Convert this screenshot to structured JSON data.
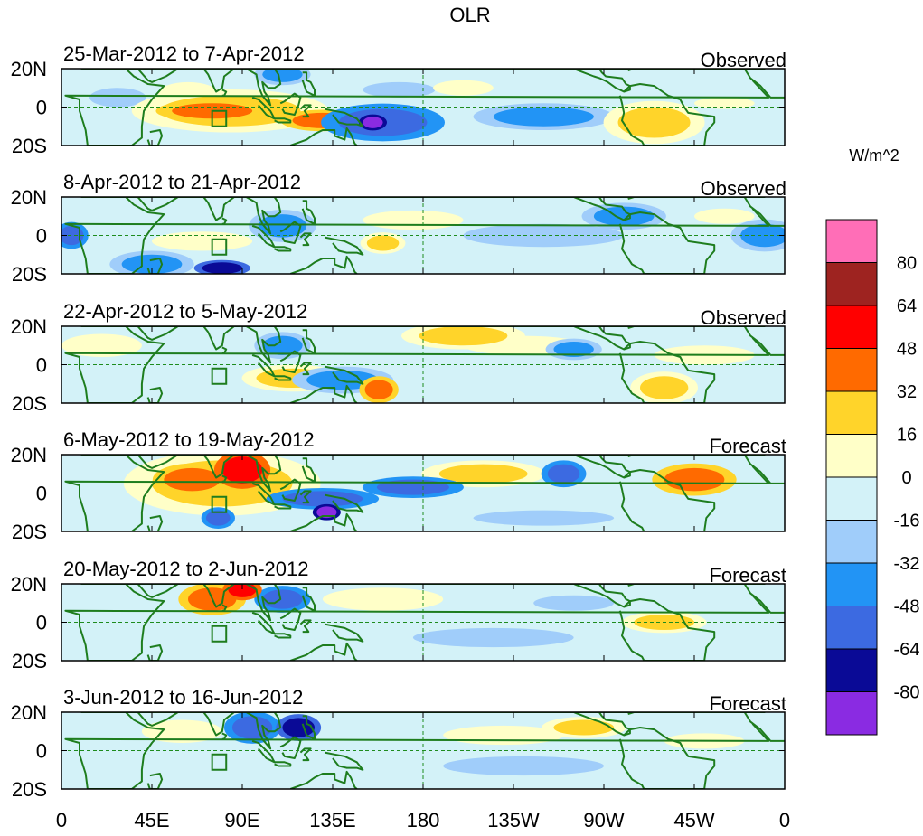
{
  "title": "OLR",
  "units_label": "W/m^2",
  "lat_labels": [
    "20N",
    "0",
    "20S"
  ],
  "lon_labels": [
    "0",
    "45E",
    "90E",
    "135E",
    "180",
    "135W",
    "90W",
    "45W",
    "0"
  ],
  "panels": [
    {
      "date_range": "25-Mar-2012 to 7-Apr-2012",
      "status": "Observed",
      "anomalies": [
        {
          "lon": 28,
          "lat": 5,
          "value": -16,
          "rx": 14,
          "ry": 5
        },
        {
          "lon": 63,
          "lat": 7,
          "value": 16,
          "rx": 15,
          "ry": 6
        },
        {
          "lon": 75,
          "lat": -2,
          "value": 48,
          "rx": 20,
          "ry": 4
        },
        {
          "lon": 84,
          "lat": -2,
          "value": 32,
          "rx": 35,
          "ry": 8
        },
        {
          "lon": 110,
          "lat": 17,
          "value": -32,
          "rx": 10,
          "ry": 4
        },
        {
          "lon": 130,
          "lat": -7,
          "value": 48,
          "rx": 15,
          "ry": 4
        },
        {
          "lon": 160,
          "lat": -8,
          "value": -48,
          "rx": 22,
          "ry": 7
        },
        {
          "lon": 155,
          "lat": -8,
          "value": -80,
          "rx": 5,
          "ry": 3
        },
        {
          "lon": 168,
          "lat": 9,
          "value": -16,
          "rx": 18,
          "ry": 4
        },
        {
          "lon": 200,
          "lat": 10,
          "value": 16,
          "rx": 15,
          "ry": 4
        },
        {
          "lon": 240,
          "lat": -5,
          "value": -32,
          "rx": 25,
          "ry": 5
        },
        {
          "lon": 295,
          "lat": -8,
          "value": 32,
          "rx": 18,
          "ry": 8
        },
        {
          "lon": 330,
          "lat": 2,
          "value": 16,
          "rx": 15,
          "ry": 3
        }
      ]
    },
    {
      "date_range": "8-Apr-2012 to 21-Apr-2012",
      "status": "Observed",
      "anomalies": [
        {
          "lon": 5,
          "lat": 0,
          "value": -48,
          "rx": 6,
          "ry": 5
        },
        {
          "lon": 45,
          "lat": -15,
          "value": -32,
          "rx": 15,
          "ry": 5
        },
        {
          "lon": 80,
          "lat": -17,
          "value": -64,
          "rx": 10,
          "ry": 3
        },
        {
          "lon": 70,
          "lat": -3,
          "value": 16,
          "rx": 25,
          "ry": 5
        },
        {
          "lon": 110,
          "lat": 5,
          "value": -32,
          "rx": 12,
          "ry": 6
        },
        {
          "lon": 160,
          "lat": -4,
          "value": 32,
          "rx": 8,
          "ry": 4
        },
        {
          "lon": 175,
          "lat": 8,
          "value": 16,
          "rx": 25,
          "ry": 5
        },
        {
          "lon": 240,
          "lat": 0,
          "value": -16,
          "rx": 40,
          "ry": 6
        },
        {
          "lon": 280,
          "lat": 10,
          "value": -32,
          "rx": 15,
          "ry": 5
        },
        {
          "lon": 350,
          "lat": 0,
          "value": -32,
          "rx": 12,
          "ry": 6
        },
        {
          "lon": 330,
          "lat": 10,
          "value": 16,
          "rx": 15,
          "ry": 4
        }
      ]
    },
    {
      "date_range": "22-Apr-2012 to 5-May-2012",
      "status": "Observed",
      "anomalies": [
        {
          "lon": 20,
          "lat": 10,
          "value": 16,
          "rx": 20,
          "ry": 6
        },
        {
          "lon": 110,
          "lat": 10,
          "value": -32,
          "rx": 10,
          "ry": 5
        },
        {
          "lon": 115,
          "lat": -7,
          "value": 32,
          "rx": 18,
          "ry": 5
        },
        {
          "lon": 158,
          "lat": -13,
          "value": 48,
          "rx": 7,
          "ry": 5
        },
        {
          "lon": 140,
          "lat": -8,
          "value": -32,
          "rx": 18,
          "ry": 5
        },
        {
          "lon": 200,
          "lat": 15,
          "value": 32,
          "rx": 22,
          "ry": 5
        },
        {
          "lon": 230,
          "lat": 10,
          "value": 16,
          "rx": 30,
          "ry": 5
        },
        {
          "lon": 255,
          "lat": 8,
          "value": -32,
          "rx": 10,
          "ry": 4
        },
        {
          "lon": 300,
          "lat": -12,
          "value": 32,
          "rx": 12,
          "ry": 6
        },
        {
          "lon": 320,
          "lat": 5,
          "value": 16,
          "rx": 25,
          "ry": 5
        }
      ]
    },
    {
      "date_range": "6-May-2012 to 19-May-2012",
      "status": "Forecast",
      "anomalies": [
        {
          "lon": 65,
          "lat": 7,
          "value": 48,
          "rx": 14,
          "ry": 6
        },
        {
          "lon": 90,
          "lat": 12,
          "value": 64,
          "rx": 10,
          "ry": 7
        },
        {
          "lon": 80,
          "lat": 5,
          "value": 32,
          "rx": 35,
          "ry": 12
        },
        {
          "lon": 78,
          "lat": -13,
          "value": -48,
          "rx": 6,
          "ry": 4
        },
        {
          "lon": 130,
          "lat": -3,
          "value": -48,
          "rx": 20,
          "ry": 4
        },
        {
          "lon": 132,
          "lat": -10,
          "value": -80,
          "rx": 5,
          "ry": 3
        },
        {
          "lon": 175,
          "lat": 3,
          "value": -48,
          "rx": 18,
          "ry": 4
        },
        {
          "lon": 210,
          "lat": 10,
          "value": 32,
          "rx": 22,
          "ry": 5
        },
        {
          "lon": 250,
          "lat": 10,
          "value": -48,
          "rx": 8,
          "ry": 5
        },
        {
          "lon": 315,
          "lat": 7,
          "value": 48,
          "rx": 15,
          "ry": 6
        },
        {
          "lon": 240,
          "lat": -13,
          "value": -16,
          "rx": 35,
          "ry": 4
        }
      ]
    },
    {
      "date_range": "20-May-2012 to 2-Jun-2012",
      "status": "Forecast",
      "anomalies": [
        {
          "lon": 75,
          "lat": 12,
          "value": 48,
          "rx": 12,
          "ry": 6
        },
        {
          "lon": 90,
          "lat": 17,
          "value": 64,
          "rx": 7,
          "ry": 4
        },
        {
          "lon": 110,
          "lat": 12,
          "value": -48,
          "rx": 10,
          "ry": 5
        },
        {
          "lon": 215,
          "lat": -8,
          "value": -16,
          "rx": 40,
          "ry": 5
        },
        {
          "lon": 300,
          "lat": 0,
          "value": 32,
          "rx": 15,
          "ry": 4
        },
        {
          "lon": 255,
          "lat": 10,
          "value": -16,
          "rx": 20,
          "ry": 4
        },
        {
          "lon": 160,
          "lat": 12,
          "value": 16,
          "rx": 30,
          "ry": 6
        }
      ]
    },
    {
      "date_range": "3-Jun-2012 to 16-Jun-2012",
      "status": "Forecast",
      "anomalies": [
        {
          "lon": 95,
          "lat": 12,
          "value": -48,
          "rx": 10,
          "ry": 6
        },
        {
          "lon": 118,
          "lat": 12,
          "value": -64,
          "rx": 8,
          "ry": 5
        },
        {
          "lon": 60,
          "lat": 10,
          "value": 16,
          "rx": 20,
          "ry": 6
        },
        {
          "lon": 220,
          "lat": 8,
          "value": 16,
          "rx": 30,
          "ry": 5
        },
        {
          "lon": 260,
          "lat": 12,
          "value": 32,
          "rx": 15,
          "ry": 4
        },
        {
          "lon": 230,
          "lat": -8,
          "value": -16,
          "rx": 40,
          "ry": 5
        },
        {
          "lon": 320,
          "lat": 5,
          "value": 16,
          "rx": 20,
          "ry": 4
        }
      ]
    }
  ],
  "colorbar": {
    "levels": [
      80,
      64,
      48,
      32,
      16,
      0,
      -16,
      -32,
      -48,
      -64,
      -80
    ],
    "colors": [
      "#ff6eb7",
      "#9e2320",
      "#ff0000",
      "#ff6a00",
      "#ffd42a",
      "#ffffc8",
      "#d3f2f8",
      "#a0cdfa",
      "#2294f5",
      "#3c6ae1",
      "#0a0a96",
      "#8a2be2"
    ]
  },
  "colors": {
    "land_outline": "#1e7d1e",
    "grid_line": "#1e8c1e",
    "box_outline": "#1e7d1e"
  }
}
